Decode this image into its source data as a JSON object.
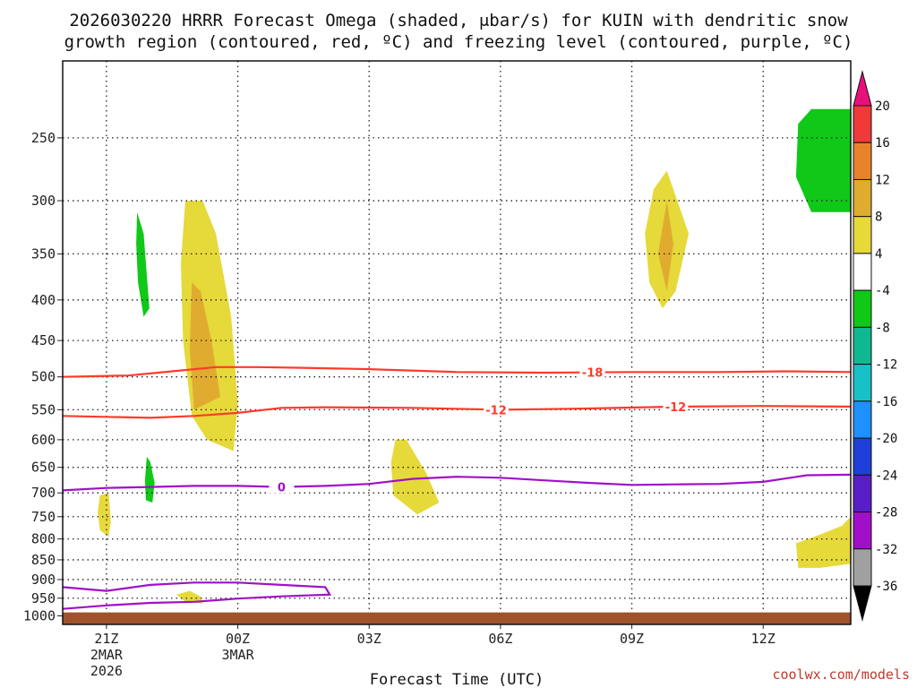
{
  "chart_data": {
    "type": "time-height contour",
    "title_line1": "2026030220 HRRR Forecast Omega (shaded, μbar/s) for KUIN with dendritic snow",
    "title_line2": "growth region (contoured, red, ºC) and freezing level (contoured, purple, ºC)",
    "xlabel": "Forecast Time (UTC)",
    "credit": "coolwx.com/models",
    "y_ticks": [
      250,
      300,
      350,
      400,
      450,
      500,
      550,
      600,
      650,
      700,
      750,
      800,
      850,
      900,
      950,
      1000
    ],
    "y_range_hpa": [
      200,
      1025
    ],
    "x_range_hours": [
      -1.0,
      17.0
    ],
    "x_ticks": [
      {
        "hour": 0,
        "lines": [
          "21Z",
          "2MAR",
          "2026"
        ]
      },
      {
        "hour": 3,
        "lines": [
          "00Z",
          "3MAR"
        ]
      },
      {
        "hour": 6,
        "lines": [
          "03Z"
        ]
      },
      {
        "hour": 9,
        "lines": [
          "06Z"
        ]
      },
      {
        "hour": 12,
        "lines": [
          "09Z"
        ]
      },
      {
        "hour": 15,
        "lines": [
          "12Z"
        ]
      }
    ],
    "colorbar": {
      "labels": [
        "20",
        "16",
        "12",
        "8",
        "4",
        "-4",
        "-8",
        "-12",
        "-16",
        "-20",
        "-24",
        "-28",
        "-32",
        "-36"
      ],
      "colors": [
        "#e8107a",
        "#f03a3a",
        "#e8832a",
        "#e0ac30",
        "#e6d93a",
        "#ffffff",
        "#10c818",
        "#10b890",
        "#18c0c8",
        "#1e90ff",
        "#1e3fd8",
        "#5a1ec8",
        "#a010c8",
        "#a0a0a0",
        "#000000"
      ]
    },
    "omega_regions": [
      {
        "color": "#10c818",
        "points": [
          [
            0.7,
            310
          ],
          [
            0.85,
            330
          ],
          [
            0.98,
            410
          ],
          [
            0.85,
            420
          ],
          [
            0.72,
            380
          ],
          [
            0.68,
            340
          ]
        ]
      },
      {
        "color": "#e6d93a",
        "points": [
          [
            1.8,
            300
          ],
          [
            2.2,
            300
          ],
          [
            2.5,
            330
          ],
          [
            2.85,
            420
          ],
          [
            3.0,
            540
          ],
          [
            2.9,
            620
          ],
          [
            2.3,
            600
          ],
          [
            1.95,
            560
          ],
          [
            1.75,
            450
          ],
          [
            1.7,
            360
          ]
        ]
      },
      {
        "color": "#e0ac30",
        "points": [
          [
            1.95,
            380
          ],
          [
            2.15,
            390
          ],
          [
            2.4,
            450
          ],
          [
            2.6,
            530
          ],
          [
            2.3,
            540
          ],
          [
            2.0,
            550
          ],
          [
            1.9,
            460
          ]
        ]
      },
      {
        "color": "#e6d93a",
        "points": [
          [
            1.6,
            940
          ],
          [
            1.9,
            930
          ],
          [
            2.15,
            945
          ],
          [
            2.2,
            965
          ],
          [
            1.8,
            960
          ]
        ]
      },
      {
        "color": "#10c818",
        "points": [
          [
            0.92,
            630
          ],
          [
            1.0,
            640
          ],
          [
            1.1,
            680
          ],
          [
            1.05,
            720
          ],
          [
            0.9,
            715
          ],
          [
            0.88,
            675
          ]
        ]
      },
      {
        "color": "#e6d93a",
        "points": [
          [
            -0.15,
            705
          ],
          [
            0.05,
            700
          ],
          [
            0.1,
            760
          ],
          [
            0.05,
            795
          ],
          [
            -0.15,
            780
          ],
          [
            -0.2,
            740
          ]
        ]
      },
      {
        "color": "#e6d93a",
        "points": [
          [
            6.6,
            600
          ],
          [
            6.85,
            600
          ],
          [
            7.3,
            660
          ],
          [
            7.6,
            720
          ],
          [
            7.1,
            745
          ],
          [
            6.55,
            705
          ],
          [
            6.5,
            640
          ]
        ]
      },
      {
        "color": "#e6d93a",
        "points": [
          [
            12.5,
            290
          ],
          [
            12.8,
            275
          ],
          [
            13.3,
            330
          ],
          [
            13.0,
            390
          ],
          [
            12.7,
            410
          ],
          [
            12.4,
            380
          ],
          [
            12.3,
            330
          ]
        ]
      },
      {
        "color": "#e0ac30",
        "points": [
          [
            12.8,
            300
          ],
          [
            12.95,
            340
          ],
          [
            12.8,
            390
          ],
          [
            12.6,
            350
          ]
        ]
      },
      {
        "color": "#10c818",
        "points": [
          [
            15.8,
            240
          ],
          [
            16.1,
            230
          ],
          [
            17.0,
            230
          ],
          [
            17.0,
            310
          ],
          [
            16.1,
            310
          ],
          [
            15.75,
            280
          ]
        ]
      },
      {
        "color": "#e6d93a",
        "points": [
          [
            17.0,
            750
          ],
          [
            17.0,
            860
          ],
          [
            16.3,
            870
          ],
          [
            15.8,
            870
          ],
          [
            15.75,
            810
          ],
          [
            16.3,
            790
          ],
          [
            16.8,
            770
          ]
        ]
      }
    ],
    "contours": [
      {
        "label": "-18",
        "color": "#ff3a2a",
        "points": [
          [
            -1,
            500
          ],
          [
            0.5,
            498
          ],
          [
            1.5,
            492
          ],
          [
            2.5,
            486
          ],
          [
            3.5,
            486
          ],
          [
            4.5,
            487
          ],
          [
            6,
            489
          ],
          [
            8,
            493
          ],
          [
            10,
            494
          ],
          [
            12,
            493
          ],
          [
            14,
            493
          ],
          [
            15.5,
            492
          ],
          [
            17,
            493
          ]
        ],
        "label_at": [
          11.1,
          493
        ]
      },
      {
        "label": "-12",
        "color": "#ff3a2a",
        "points": [
          [
            -1,
            560
          ],
          [
            1,
            563
          ],
          [
            2,
            560
          ],
          [
            3,
            555
          ],
          [
            4,
            547
          ],
          [
            5,
            546
          ],
          [
            7,
            547
          ],
          [
            9,
            550
          ],
          [
            11,
            548
          ],
          [
            13,
            545
          ],
          [
            15,
            544
          ],
          [
            17,
            545
          ]
        ],
        "label_at": [
          8.9,
          550
        ]
      },
      {
        "label": "-12",
        "color": "#ff3a2a",
        "points": [],
        "label_at": [
          13.0,
          545
        ]
      },
      {
        "label": "0",
        "color": "#a010c8",
        "points": [
          [
            -1,
            695
          ],
          [
            0,
            690
          ],
          [
            1,
            688
          ],
          [
            2,
            686
          ],
          [
            3,
            686
          ],
          [
            4,
            688
          ],
          [
            5,
            686
          ],
          [
            6,
            682
          ],
          [
            7,
            672
          ],
          [
            8,
            668
          ],
          [
            9,
            670
          ],
          [
            10,
            675
          ],
          [
            11,
            680
          ],
          [
            12,
            684
          ],
          [
            13,
            683
          ],
          [
            14,
            682
          ],
          [
            15,
            678
          ],
          [
            16,
            665
          ],
          [
            17,
            664
          ]
        ],
        "label_at": [
          4.0,
          688
        ]
      }
    ],
    "freezing_loop": {
      "color": "#a010c8",
      "outer": [
        [
          -1,
          920
        ],
        [
          0,
          930
        ],
        [
          1,
          914
        ],
        [
          2,
          908
        ],
        [
          3,
          908
        ],
        [
          4,
          914
        ],
        [
          5,
          920
        ],
        [
          5.1,
          940
        ],
        [
          4,
          945
        ],
        [
          3,
          951
        ],
        [
          2,
          960
        ],
        [
          1,
          963
        ],
        [
          0,
          970
        ],
        [
          -1,
          980
        ]
      ]
    },
    "ground_color": "#a0522d"
  }
}
